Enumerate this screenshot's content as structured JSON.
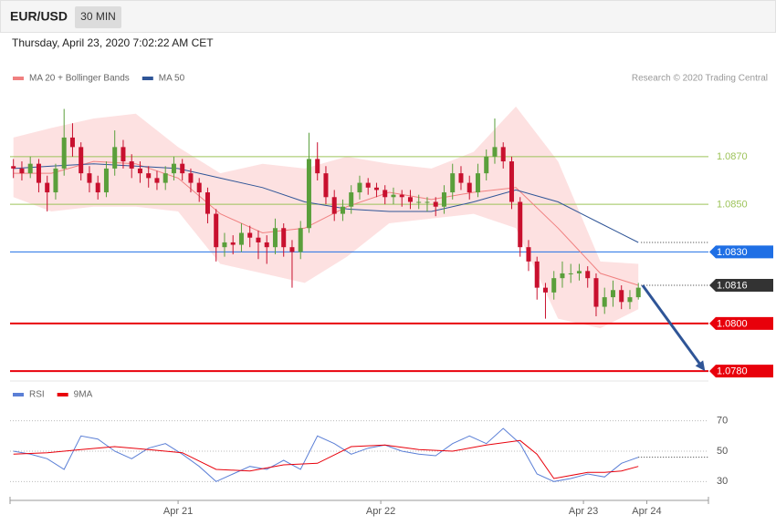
{
  "header": {
    "symbol": "EUR/USD",
    "timeframe": "30 MIN",
    "timestamp": "Thursday, April 23, 2020 7:02:22 AM CET",
    "credit": "Research © 2020 Trading Central"
  },
  "chart_data": [
    {
      "type": "candlestick",
      "xlim": [
        -19.9,
        62.8
      ],
      "ylim": [
        1.0777,
        1.0912
      ],
      "up_color": "#5a9f3b",
      "down_color": "#c8102e",
      "x": [
        -19.5,
        -18.5,
        -17.5,
        -16.5,
        -15.5,
        -14.5,
        -13.5,
        -12.5,
        -11.5,
        -10.5,
        -9.5,
        -8.5,
        -7.5,
        -6.5,
        -5.5,
        -4.5,
        -3.5,
        -2.5,
        -1.5,
        -0.5,
        0.5,
        1.5,
        2.5,
        3.5,
        4.5,
        5.5,
        6.5,
        7.5,
        8.5,
        9.5,
        10.5,
        11.5,
        12.5,
        13.5,
        14.5,
        15.5,
        16.5,
        17.5,
        18.5,
        19.5,
        20.5,
        21.5,
        22.5,
        23.5,
        24.5,
        25.5,
        26.5,
        27.5,
        28.5,
        29.5,
        30.5,
        31.5,
        32.5,
        33.5,
        34.5,
        35.5,
        36.5,
        37.5,
        38.5,
        39.5,
        40.5,
        41.5,
        42.5,
        43.5,
        44.5,
        45.5,
        46.5,
        47.5,
        48.5,
        49.5,
        50.5,
        51.5,
        52.5,
        53.5,
        54.5
      ],
      "open": [
        1.0866,
        1.0865,
        1.0863,
        1.0867,
        1.0859,
        1.0855,
        1.0865,
        1.0878,
        1.0874,
        1.0863,
        1.0859,
        1.0855,
        1.0865,
        1.0874,
        1.0868,
        1.0865,
        1.0863,
        1.0861,
        1.0859,
        1.0863,
        1.0867,
        1.0863,
        1.0859,
        1.0855,
        1.0846,
        1.0832,
        1.0834,
        1.0833,
        1.0838,
        1.0836,
        1.0834,
        1.0832,
        1.084,
        1.0832,
        1.083,
        1.084,
        1.0869,
        1.0863,
        1.0853,
        1.0846,
        1.0849,
        1.0855,
        1.0859,
        1.0857,
        1.0856,
        1.0853,
        1.0854,
        1.0853,
        1.0851,
        1.0851,
        1.0851,
        1.0849,
        1.0855,
        1.0863,
        1.0859,
        1.0855,
        1.0863,
        1.087,
        1.0874,
        1.0868,
        1.0851,
        1.0832,
        1.0826,
        1.0815,
        1.0813,
        1.0819,
        1.0821,
        1.0821,
        1.0822,
        1.0819,
        1.0807,
        1.0811,
        1.0814,
        1.0809,
        1.0811
      ],
      "high": [
        1.0869,
        1.0868,
        1.087,
        1.0869,
        1.0862,
        1.0867,
        1.089,
        1.0884,
        1.0876,
        1.0866,
        1.0862,
        1.0868,
        1.0881,
        1.0877,
        1.0871,
        1.0868,
        1.0866,
        1.0864,
        1.0866,
        1.087,
        1.0869,
        1.0865,
        1.0861,
        1.0857,
        1.0848,
        1.0838,
        1.0837,
        1.0842,
        1.0841,
        1.0839,
        1.0837,
        1.0844,
        1.0842,
        1.0835,
        1.0843,
        1.088,
        1.0876,
        1.0866,
        1.0856,
        1.0852,
        1.0858,
        1.0862,
        1.0861,
        1.0859,
        1.0858,
        1.0857,
        1.0856,
        1.0856,
        1.0854,
        1.0853,
        1.0853,
        1.0858,
        1.0867,
        1.0866,
        1.0862,
        1.0867,
        1.0873,
        1.0886,
        1.0876,
        1.087,
        1.0853,
        1.0835,
        1.0828,
        1.0817,
        1.0822,
        1.0826,
        1.0825,
        1.0825,
        1.0824,
        1.0821,
        1.0815,
        1.0818,
        1.0816,
        1.0814,
        1.0817
      ],
      "low": [
        1.0861,
        1.086,
        1.0861,
        1.0855,
        1.0847,
        1.0852,
        1.0862,
        1.087,
        1.086,
        1.0855,
        1.0852,
        1.0853,
        1.0862,
        1.0865,
        1.0861,
        1.0859,
        1.0857,
        1.0856,
        1.0856,
        1.086,
        1.086,
        1.0855,
        1.0851,
        1.0842,
        1.0826,
        1.0828,
        1.0829,
        1.083,
        1.0832,
        1.0827,
        1.0825,
        1.0829,
        1.0828,
        1.0815,
        1.0827,
        1.0838,
        1.086,
        1.085,
        1.0843,
        1.0843,
        1.0846,
        1.0852,
        1.0854,
        1.0853,
        1.085,
        1.085,
        1.0849,
        1.0848,
        1.0848,
        1.0847,
        1.0845,
        1.0846,
        1.0852,
        1.0856,
        1.0852,
        1.0853,
        1.086,
        1.0867,
        1.0865,
        1.0848,
        1.0828,
        1.0822,
        1.081,
        1.0802,
        1.081,
        1.0815,
        1.0817,
        1.0818,
        1.0815,
        1.0803,
        1.0804,
        1.0807,
        1.0806,
        1.0806,
        1.081
      ],
      "close": [
        1.0865,
        1.0863,
        1.0867,
        1.0859,
        1.0855,
        1.0865,
        1.0878,
        1.0874,
        1.0863,
        1.0859,
        1.0855,
        1.0865,
        1.0874,
        1.0868,
        1.0865,
        1.0863,
        1.0861,
        1.0859,
        1.0863,
        1.0867,
        1.0863,
        1.0859,
        1.0855,
        1.0846,
        1.0832,
        1.0834,
        1.0833,
        1.0838,
        1.0836,
        1.0834,
        1.0832,
        1.084,
        1.0832,
        1.083,
        1.084,
        1.0869,
        1.0863,
        1.0853,
        1.0846,
        1.0849,
        1.0855,
        1.0859,
        1.0857,
        1.0856,
        1.0853,
        1.0854,
        1.0853,
        1.0851,
        1.0851,
        1.0851,
        1.0849,
        1.0855,
        1.0863,
        1.0859,
        1.0855,
        1.0863,
        1.087,
        1.0874,
        1.0868,
        1.0851,
        1.0832,
        1.0826,
        1.0815,
        1.0813,
        1.0819,
        1.0821,
        1.0821,
        1.0822,
        1.0819,
        1.0807,
        1.0811,
        1.0814,
        1.0809,
        1.0811,
        1.0815
      ],
      "overlays": [
        {
          "name": "MA 20 + Bollinger Bands",
          "color": "#f08080",
          "band_color": "#fde1e1",
          "x": [
            -19.5,
            -15,
            -10,
            -5,
            0,
            5,
            10,
            15,
            20,
            25,
            30,
            35,
            40,
            45,
            50,
            54.5
          ],
          "values": [
            1.0863,
            1.0863,
            1.0868,
            1.0867,
            1.0861,
            1.0846,
            1.0838,
            1.084,
            1.0849,
            1.0855,
            1.0852,
            1.0855,
            1.0857,
            1.084,
            1.0821,
            1.0816
          ],
          "upper": [
            1.0878,
            1.0882,
            1.0886,
            1.0888,
            1.0874,
            1.0863,
            1.0867,
            1.0865,
            1.087,
            1.0867,
            1.0865,
            1.0872,
            1.0891,
            1.0868,
            1.0826,
            1.0825
          ],
          "lower": [
            1.0853,
            1.0847,
            1.0849,
            1.0849,
            1.0847,
            1.0825,
            1.0821,
            1.0817,
            1.0828,
            1.0842,
            1.0844,
            1.0846,
            1.084,
            1.0802,
            1.0798,
            1.0806
          ]
        },
        {
          "name": "MA 50",
          "color": "#2f5597",
          "x": [
            -19.5,
            -15,
            -10,
            -5,
            0,
            5,
            10,
            15,
            20,
            25,
            30,
            35,
            40,
            45,
            50,
            54.5
          ],
          "values": [
            1.0865,
            1.0866,
            1.0867,
            1.0866,
            1.0865,
            1.0861,
            1.0857,
            1.0851,
            1.0848,
            1.0847,
            1.0847,
            1.0851,
            1.0856,
            1.0851,
            1.0842,
            1.0834
          ]
        }
      ],
      "levels": [
        {
          "value": 1.087,
          "label": "1.0870",
          "color": "#9dc35a",
          "badge": false,
          "line": "solid"
        },
        {
          "value": 1.085,
          "label": "1.0850",
          "color": "#9dc35a",
          "badge": false,
          "line": "solid"
        },
        {
          "value": 1.083,
          "label": "1.0830",
          "color": "#1f6fe5",
          "badge": true,
          "line": "solid"
        },
        {
          "value": 1.0816,
          "label": "1.0816",
          "color": "#333333",
          "badge": true,
          "line": "dotted"
        },
        {
          "value": 1.08,
          "label": "1.0800",
          "color": "#e8000b",
          "badge": true,
          "line": "solid"
        },
        {
          "value": 1.078,
          "label": "1.0780",
          "color": "#e8000b",
          "badge": true,
          "line": "solid"
        }
      ],
      "forecast_arrow": {
        "color": "#2f5597",
        "x": [
          55,
          62.4
        ],
        "y": [
          1.0816,
          1.078
        ]
      }
    },
    {
      "type": "line",
      "xlim": [
        -19.9,
        62.8
      ],
      "ylim": [
        20,
        80
      ],
      "yticks": [
        70,
        50,
        30
      ],
      "xticks": [
        {
          "value": 0,
          "label": "Apr 21"
        },
        {
          "value": 24,
          "label": "Apr 22"
        },
        {
          "value": 48,
          "label": "Apr 23"
        },
        {
          "value": 55.5,
          "label": "Apr 24"
        }
      ],
      "series": [
        {
          "name": "RSI",
          "color": "#5b7fd6",
          "x": [
            -19.5,
            -17.5,
            -15.5,
            -13.5,
            -11.5,
            -9.5,
            -7.5,
            -5.5,
            -3.5,
            -1.5,
            0.5,
            2.5,
            4.5,
            6.5,
            8.5,
            10.5,
            12.5,
            14.5,
            16.5,
            18.5,
            20.5,
            22.5,
            24.5,
            26.5,
            28.5,
            30.5,
            32.5,
            34.5,
            36.5,
            38.5,
            40.5,
            42.5,
            44.5,
            46.5,
            48.5,
            50.5,
            52.5,
            54.5
          ],
          "values": [
            50,
            48,
            45,
            38,
            60,
            58,
            50,
            45,
            52,
            55,
            48,
            40,
            30,
            35,
            40,
            38,
            44,
            38,
            60,
            55,
            48,
            52,
            54,
            50,
            48,
            47,
            55,
            60,
            55,
            65,
            55,
            35,
            30,
            32,
            35,
            33,
            42,
            46
          ]
        },
        {
          "name": "9MA",
          "color": "#e8000b",
          "x": [
            -19.5,
            -15.5,
            -11.5,
            -7.5,
            -3.5,
            0.5,
            4.5,
            8.5,
            12.5,
            16.5,
            20.5,
            24.5,
            28.5,
            32.5,
            36.5,
            40.5,
            42.5,
            44.5,
            48.5,
            50.5,
            52.5,
            54.5
          ],
          "values": [
            48,
            49,
            51,
            53,
            51,
            49,
            38,
            37,
            41,
            42,
            53,
            54,
            51,
            50,
            54,
            57,
            48,
            32,
            36,
            36,
            37,
            40
          ]
        }
      ]
    }
  ]
}
